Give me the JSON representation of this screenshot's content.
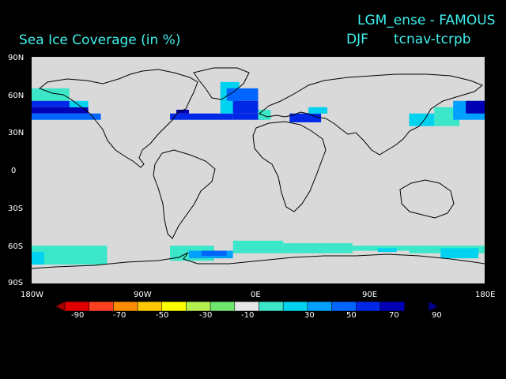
{
  "titles": {
    "experiment": "LGM_ense - FAMOUS",
    "season": "DJF",
    "variable_code": "tcnav-tcrpb",
    "field": "Sea Ice Coverage (in %)"
  },
  "axes": {
    "lat_labels": [
      "90N",
      "60N",
      "30N",
      "0",
      "30S",
      "60S",
      "90S"
    ],
    "lon_labels": [
      "180W",
      "90W",
      "0E",
      "90E",
      "180E"
    ]
  },
  "colorbar": {
    "labels": [
      "-90",
      "-70",
      "-50",
      "-30",
      "-10",
      "30",
      "50",
      "70",
      "90"
    ],
    "colors": [
      "#a00000",
      "#e00000",
      "#ff4020",
      "#ff8c00",
      "#ffc800",
      "#ffff00",
      "#b4f050",
      "#6ee66e",
      "#e6e6e6",
      "#3ce6c8",
      "#00d2f0",
      "#00a0ff",
      "#0064ff",
      "#0028e6",
      "#0000b4",
      "#00008c"
    ]
  },
  "map": {
    "background": "#d9d9d9",
    "cells": [
      {
        "lon": [
          -180,
          -150
        ],
        "lat": [
          55,
          65
        ],
        "value": 20
      },
      {
        "lon": [
          -180,
          -145
        ],
        "lat": [
          50,
          55
        ],
        "value": 70
      },
      {
        "lon": [
          -180,
          -135
        ],
        "lat": [
          45,
          50
        ],
        "value": 80
      },
      {
        "lon": [
          -180,
          -125
        ],
        "lat": [
          40,
          45
        ],
        "value": 60
      },
      {
        "lon": [
          -150,
          -135
        ],
        "lat": [
          50,
          55
        ],
        "value": 40
      },
      {
        "lon": [
          -70,
          -20
        ],
        "lat": [
          40,
          45
        ],
        "value": 70
      },
      {
        "lon": [
          -65,
          -55
        ],
        "lat": [
          45,
          48
        ],
        "value": 90
      },
      {
        "lon": [
          -30,
          -15
        ],
        "lat": [
          45,
          70
        ],
        "value": 40
      },
      {
        "lon": [
          -25,
          0
        ],
        "lat": [
          55,
          65
        ],
        "value": 60
      },
      {
        "lon": [
          -20,
          0
        ],
        "lat": [
          45,
          55
        ],
        "value": 70
      },
      {
        "lon": [
          -20,
          5
        ],
        "lat": [
          40,
          45
        ],
        "value": 75
      },
      {
        "lon": [
          0,
          10
        ],
        "lat": [
          40,
          48
        ],
        "value": 20
      },
      {
        "lon": [
          25,
          50
        ],
        "lat": [
          38,
          45
        ],
        "value": 75
      },
      {
        "lon": [
          40,
          55
        ],
        "lat": [
          45,
          50
        ],
        "value": 40
      },
      {
        "lon": [
          120,
          140
        ],
        "lat": [
          35,
          45
        ],
        "value": 40
      },
      {
        "lon": [
          140,
          160
        ],
        "lat": [
          35,
          50
        ],
        "value": 20
      },
      {
        "lon": [
          155,
          180
        ],
        "lat": [
          40,
          55
        ],
        "value": 50
      },
      {
        "lon": [
          165,
          180
        ],
        "lat": [
          45,
          55
        ],
        "value": 80
      },
      {
        "lon": [
          -180,
          -120
        ],
        "lat": [
          -75,
          -60
        ],
        "value": 20
      },
      {
        "lon": [
          -180,
          -170
        ],
        "lat": [
          -75,
          -65
        ],
        "value": 40
      },
      {
        "lon": [
          -70,
          -35
        ],
        "lat": [
          -72,
          -60
        ],
        "value": 20
      },
      {
        "lon": [
          -55,
          -20
        ],
        "lat": [
          -70,
          -64
        ],
        "value": 50
      },
      {
        "lon": [
          -45,
          -25
        ],
        "lat": [
          -68,
          -64
        ],
        "value": 60
      },
      {
        "lon": [
          -20,
          20
        ],
        "lat": [
          -66,
          -56
        ],
        "value": 20
      },
      {
        "lon": [
          20,
          75
        ],
        "lat": [
          -66,
          -58
        ],
        "value": 20
      },
      {
        "lon": [
          75,
          120
        ],
        "lat": [
          -64,
          -60
        ],
        "value": 30
      },
      {
        "lon": [
          95,
          110
        ],
        "lat": [
          -65,
          -62
        ],
        "value": 40
      },
      {
        "lon": [
          120,
          180
        ],
        "lat": [
          -66,
          -60
        ],
        "value": 20
      },
      {
        "lon": [
          145,
          175
        ],
        "lat": [
          -70,
          -62
        ],
        "value": 40
      }
    ]
  }
}
